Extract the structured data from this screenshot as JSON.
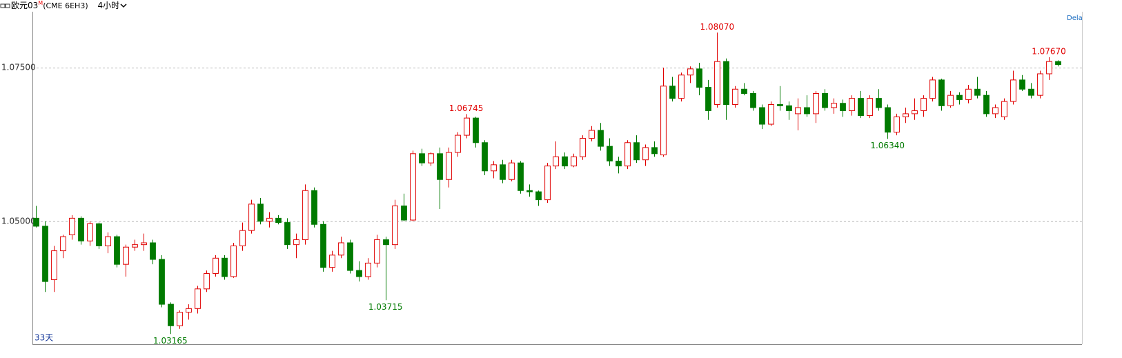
{
  "header": {
    "symbol": "欧元03",
    "symbol_mark": "M",
    "contract": "(CME 6EH3)",
    "period": "4小时"
  },
  "chart_data": {
    "type": "candlestick",
    "range_label": "33天",
    "corner_label": "Dela",
    "up_color": "#e00000",
    "down_color": "#007a00",
    "ylim": [
      1.03,
      1.0841
    ],
    "yticks": [
      {
        "value": 1.05,
        "label": "1.05000"
      },
      {
        "value": 1.075,
        "label": "1.07500"
      }
    ],
    "grid": true,
    "annotations": [
      {
        "value": 1.03165,
        "label": "1.03165"
      },
      {
        "value": 1.03715,
        "label": "1.03715"
      },
      {
        "value": 1.06745,
        "label": "1.06745"
      },
      {
        "value": 1.0807,
        "label": "1.08070"
      },
      {
        "value": 1.0634,
        "label": "1.06340"
      },
      {
        "value": 1.0767,
        "label": "1.07670"
      }
    ],
    "candles": [
      {
        "open": 1.0505,
        "high": 1.0525,
        "low": 1.049,
        "close": 1.0492
      },
      {
        "open": 1.0492,
        "high": 1.05,
        "low": 1.0385,
        "close": 1.0402
      },
      {
        "open": 1.0405,
        "high": 1.046,
        "low": 1.0385,
        "close": 1.0452
      },
      {
        "open": 1.0452,
        "high": 1.0478,
        "low": 1.044,
        "close": 1.0475
      },
      {
        "open": 1.0478,
        "high": 1.051,
        "low": 1.047,
        "close": 1.0505
      },
      {
        "open": 1.0505,
        "high": 1.0508,
        "low": 1.0462,
        "close": 1.0468
      },
      {
        "open": 1.0468,
        "high": 1.05,
        "low": 1.046,
        "close": 1.0496
      },
      {
        "open": 1.0496,
        "high": 1.0498,
        "low": 1.0455,
        "close": 1.046
      },
      {
        "open": 1.046,
        "high": 1.0482,
        "low": 1.0448,
        "close": 1.0475
      },
      {
        "open": 1.0475,
        "high": 1.0478,
        "low": 1.0425,
        "close": 1.043
      },
      {
        "open": 1.043,
        "high": 1.0462,
        "low": 1.041,
        "close": 1.0458
      },
      {
        "open": 1.0458,
        "high": 1.047,
        "low": 1.0452,
        "close": 1.0462
      },
      {
        "open": 1.0462,
        "high": 1.048,
        "low": 1.0452,
        "close": 1.0465
      },
      {
        "open": 1.0465,
        "high": 1.047,
        "low": 1.043,
        "close": 1.0438
      },
      {
        "open": 1.0438,
        "high": 1.0445,
        "low": 1.036,
        "close": 1.0365
      },
      {
        "open": 1.0365,
        "high": 1.0368,
        "low": 1.03165,
        "close": 1.033
      },
      {
        "open": 1.033,
        "high": 1.0355,
        "low": 1.0325,
        "close": 1.0352
      },
      {
        "open": 1.0352,
        "high": 1.0365,
        "low": 1.034,
        "close": 1.0358
      },
      {
        "open": 1.0358,
        "high": 1.0395,
        "low": 1.035,
        "close": 1.039
      },
      {
        "open": 1.039,
        "high": 1.042,
        "low": 1.0385,
        "close": 1.0415
      },
      {
        "open": 1.0415,
        "high": 1.0445,
        "low": 1.041,
        "close": 1.044
      },
      {
        "open": 1.044,
        "high": 1.0445,
        "low": 1.0405,
        "close": 1.041
      },
      {
        "open": 1.041,
        "high": 1.0465,
        "low": 1.0408,
        "close": 1.046
      },
      {
        "open": 1.046,
        "high": 1.0498,
        "low": 1.0452,
        "close": 1.0485
      },
      {
        "open": 1.0485,
        "high": 1.0535,
        "low": 1.048,
        "close": 1.0528
      },
      {
        "open": 1.0528,
        "high": 1.0538,
        "low": 1.0495,
        "close": 1.05
      },
      {
        "open": 1.05,
        "high": 1.0515,
        "low": 1.049,
        "close": 1.0505
      },
      {
        "open": 1.0505,
        "high": 1.051,
        "low": 1.0495,
        "close": 1.0498
      },
      {
        "open": 1.0498,
        "high": 1.0505,
        "low": 1.0455,
        "close": 1.0462
      },
      {
        "open": 1.0462,
        "high": 1.048,
        "low": 1.044,
        "close": 1.047
      },
      {
        "open": 1.047,
        "high": 1.056,
        "low": 1.0462,
        "close": 1.055
      },
      {
        "open": 1.055,
        "high": 1.0555,
        "low": 1.049,
        "close": 1.0495
      },
      {
        "open": 1.0495,
        "high": 1.05,
        "low": 1.0418,
        "close": 1.0425
      },
      {
        "open": 1.0425,
        "high": 1.0452,
        "low": 1.0418,
        "close": 1.0445
      },
      {
        "open": 1.0445,
        "high": 1.0475,
        "low": 1.044,
        "close": 1.0465
      },
      {
        "open": 1.0465,
        "high": 1.047,
        "low": 1.0415,
        "close": 1.042
      },
      {
        "open": 1.042,
        "high": 1.0435,
        "low": 1.0402,
        "close": 1.041
      },
      {
        "open": 1.041,
        "high": 1.044,
        "low": 1.0405,
        "close": 1.0432
      },
      {
        "open": 1.0432,
        "high": 1.0478,
        "low": 1.0425,
        "close": 1.047
      },
      {
        "open": 1.047,
        "high": 1.0475,
        "low": 1.03715,
        "close": 1.0462
      },
      {
        "open": 1.0462,
        "high": 1.0535,
        "low": 1.0455,
        "close": 1.0525
      },
      {
        "open": 1.0525,
        "high": 1.0545,
        "low": 1.05,
        "close": 1.0502
      },
      {
        "open": 1.0502,
        "high": 1.0615,
        "low": 1.05,
        "close": 1.061
      },
      {
        "open": 1.061,
        "high": 1.0618,
        "low": 1.059,
        "close": 1.0595
      },
      {
        "open": 1.0595,
        "high": 1.0612,
        "low": 1.059,
        "close": 1.061
      },
      {
        "open": 1.061,
        "high": 1.062,
        "low": 1.052,
        "close": 1.0568
      },
      {
        "open": 1.0568,
        "high": 1.062,
        "low": 1.0555,
        "close": 1.0612
      },
      {
        "open": 1.0612,
        "high": 1.0645,
        "low": 1.0605,
        "close": 1.064
      },
      {
        "open": 1.064,
        "high": 1.06745,
        "low": 1.0635,
        "close": 1.0668
      },
      {
        "open": 1.0668,
        "high": 1.067,
        "low": 1.062,
        "close": 1.0628
      },
      {
        "open": 1.0628,
        "high": 1.0632,
        "low": 1.0575,
        "close": 1.0582
      },
      {
        "open": 1.0582,
        "high": 1.0598,
        "low": 1.057,
        "close": 1.0592
      },
      {
        "open": 1.0592,
        "high": 1.06,
        "low": 1.0562,
        "close": 1.0568
      },
      {
        "open": 1.0568,
        "high": 1.06,
        "low": 1.0565,
        "close": 1.0595
      },
      {
        "open": 1.0595,
        "high": 1.0598,
        "low": 1.0545,
        "close": 1.055
      },
      {
        "open": 1.055,
        "high": 1.056,
        "low": 1.054,
        "close": 1.0548
      },
      {
        "open": 1.0548,
        "high": 1.055,
        "low": 1.0525,
        "close": 1.0535
      },
      {
        "open": 1.0535,
        "high": 1.0595,
        "low": 1.053,
        "close": 1.059
      },
      {
        "open": 1.059,
        "high": 1.063,
        "low": 1.0585,
        "close": 1.0605
      },
      {
        "open": 1.0605,
        "high": 1.0612,
        "low": 1.0585,
        "close": 1.059
      },
      {
        "open": 1.059,
        "high": 1.061,
        "low": 1.0588,
        "close": 1.0605
      },
      {
        "open": 1.0605,
        "high": 1.064,
        "low": 1.06,
        "close": 1.0635
      },
      {
        "open": 1.0635,
        "high": 1.0655,
        "low": 1.063,
        "close": 1.0648
      },
      {
        "open": 1.0648,
        "high": 1.066,
        "low": 1.0615,
        "close": 1.0622
      },
      {
        "open": 1.0622,
        "high": 1.0635,
        "low": 1.059,
        "close": 1.0598
      },
      {
        "open": 1.0598,
        "high": 1.0605,
        "low": 1.0578,
        "close": 1.059
      },
      {
        "open": 1.059,
        "high": 1.0632,
        "low": 1.0585,
        "close": 1.0628
      },
      {
        "open": 1.0628,
        "high": 1.064,
        "low": 1.0595,
        "close": 1.06
      },
      {
        "open": 1.06,
        "high": 1.0625,
        "low": 1.059,
        "close": 1.062
      },
      {
        "open": 1.062,
        "high": 1.063,
        "low": 1.0605,
        "close": 1.061
      },
      {
        "open": 1.0608,
        "high": 1.075,
        "low": 1.0605,
        "close": 1.072
      },
      {
        "open": 1.072,
        "high": 1.0735,
        "low": 1.0695,
        "close": 1.07
      },
      {
        "open": 1.07,
        "high": 1.0742,
        "low": 1.0695,
        "close": 1.0738
      },
      {
        "open": 1.0738,
        "high": 1.0752,
        "low": 1.0725,
        "close": 1.0748
      },
      {
        "open": 1.0748,
        "high": 1.0758,
        "low": 1.0705,
        "close": 1.0718
      },
      {
        "open": 1.0718,
        "high": 1.073,
        "low": 1.0665,
        "close": 1.068
      },
      {
        "open": 1.069,
        "high": 1.0807,
        "low": 1.0685,
        "close": 1.076
      },
      {
        "open": 1.076,
        "high": 1.0765,
        "low": 1.0665,
        "close": 1.069
      },
      {
        "open": 1.069,
        "high": 1.072,
        "low": 1.0685,
        "close": 1.0715
      },
      {
        "open": 1.0715,
        "high": 1.0725,
        "low": 1.0705,
        "close": 1.0708
      },
      {
        "open": 1.0708,
        "high": 1.0712,
        "low": 1.068,
        "close": 1.0685
      },
      {
        "open": 1.0685,
        "high": 1.069,
        "low": 1.065,
        "close": 1.0658
      },
      {
        "open": 1.0658,
        "high": 1.0695,
        "low": 1.0655,
        "close": 1.069
      },
      {
        "open": 1.069,
        "high": 1.072,
        "low": 1.068,
        "close": 1.0688
      },
      {
        "open": 1.0688,
        "high": 1.0695,
        "low": 1.0665,
        "close": 1.068
      },
      {
        "open": 1.0675,
        "high": 1.07,
        "low": 1.0648,
        "close": 1.0685
      },
      {
        "open": 1.0685,
        "high": 1.0705,
        "low": 1.067,
        "close": 1.0675
      },
      {
        "open": 1.0675,
        "high": 1.0712,
        "low": 1.066,
        "close": 1.0708
      },
      {
        "open": 1.0708,
        "high": 1.0715,
        "low": 1.068,
        "close": 1.0685
      },
      {
        "open": 1.0685,
        "high": 1.07,
        "low": 1.0675,
        "close": 1.0692
      },
      {
        "open": 1.0692,
        "high": 1.0698,
        "low": 1.067,
        "close": 1.068
      },
      {
        "open": 1.068,
        "high": 1.0705,
        "low": 1.0672,
        "close": 1.07
      },
      {
        "open": 1.07,
        "high": 1.0712,
        "low": 1.0668,
        "close": 1.0672
      },
      {
        "open": 1.0672,
        "high": 1.0705,
        "low": 1.0668,
        "close": 1.07
      },
      {
        "open": 1.07,
        "high": 1.0715,
        "low": 1.068,
        "close": 1.0685
      },
      {
        "open": 1.0685,
        "high": 1.069,
        "low": 1.0634,
        "close": 1.0645
      },
      {
        "open": 1.0645,
        "high": 1.0675,
        "low": 1.064,
        "close": 1.067
      },
      {
        "open": 1.067,
        "high": 1.0685,
        "low": 1.066,
        "close": 1.0675
      },
      {
        "open": 1.0675,
        "high": 1.07,
        "low": 1.0665,
        "close": 1.068
      },
      {
        "open": 1.068,
        "high": 1.0705,
        "low": 1.067,
        "close": 1.07
      },
      {
        "open": 1.07,
        "high": 1.0735,
        "low": 1.0695,
        "close": 1.073
      },
      {
        "open": 1.073,
        "high": 1.0732,
        "low": 1.068,
        "close": 1.0688
      },
      {
        "open": 1.0688,
        "high": 1.0712,
        "low": 1.0685,
        "close": 1.0705
      },
      {
        "open": 1.0705,
        "high": 1.071,
        "low": 1.069,
        "close": 1.0698
      },
      {
        "open": 1.0698,
        "high": 1.0722,
        "low": 1.0692,
        "close": 1.0715
      },
      {
        "open": 1.0715,
        "high": 1.0735,
        "low": 1.07,
        "close": 1.0705
      },
      {
        "open": 1.0705,
        "high": 1.0712,
        "low": 1.067,
        "close": 1.0675
      },
      {
        "open": 1.0675,
        "high": 1.069,
        "low": 1.0668,
        "close": 1.0685
      },
      {
        "open": 1.067,
        "high": 1.07,
        "low": 1.0665,
        "close": 1.0695
      },
      {
        "open": 1.0695,
        "high": 1.0745,
        "low": 1.069,
        "close": 1.073
      },
      {
        "open": 1.073,
        "high": 1.0738,
        "low": 1.0712,
        "close": 1.0715
      },
      {
        "open": 1.0715,
        "high": 1.0725,
        "low": 1.07,
        "close": 1.0705
      },
      {
        "open": 1.0705,
        "high": 1.0745,
        "low": 1.07,
        "close": 1.074
      },
      {
        "open": 1.074,
        "high": 1.0767,
        "low": 1.073,
        "close": 1.076
      },
      {
        "open": 1.076,
        "high": 1.0762,
        "low": 1.0752,
        "close": 1.0755
      }
    ]
  }
}
